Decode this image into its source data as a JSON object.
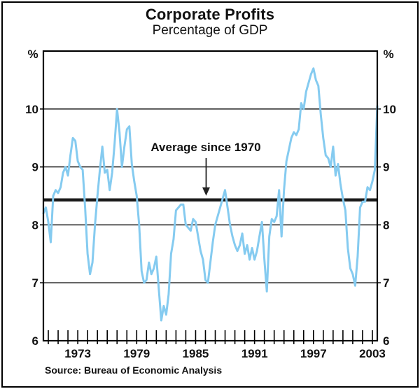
{
  "title": "Corporate Profits",
  "subtitle": "Percentage of GDP",
  "source_note": "Source: Bureau of Economic Analysis",
  "axis_unit": "%",
  "annotation": {
    "label": "Average since 1970"
  },
  "colors": {
    "series": "#85CBF0",
    "axis": "#000000",
    "average_line": "#1a1a1a",
    "background": "#ffffff"
  },
  "chart_data": {
    "type": "line",
    "title": "Corporate Profits",
    "subtitle": "Percentage of GDP",
    "ylabel": "%",
    "ylabel_right": "%",
    "ylim": [
      6,
      11
    ],
    "yticks": [
      6,
      7,
      8,
      9,
      10
    ],
    "grid": "horizontal lines at 7, 8, 9, 10",
    "legend_position": "none",
    "x_axis": {
      "start": 1969.5,
      "end": 2003.5,
      "minor_tick_first_year": 1970,
      "minor_tick_last_year": 2003,
      "labeled_years": [
        1973,
        1979,
        1985,
        1991,
        1997,
        2003
      ]
    },
    "average_line": {
      "label": "Average since 1970",
      "value": 8.43
    },
    "series": [
      {
        "name": "Corporate profits, percentage of GDP",
        "x_start": 1969.5,
        "x_step": 0.25,
        "values": [
          8.2,
          8.3,
          8.05,
          7.7,
          8.5,
          8.6,
          8.55,
          8.65,
          8.9,
          9.0,
          8.85,
          9.2,
          9.5,
          9.45,
          9.1,
          9.0,
          8.95,
          8.3,
          7.5,
          7.15,
          7.35,
          8.0,
          8.5,
          8.95,
          9.35,
          8.9,
          8.95,
          8.6,
          8.9,
          9.4,
          10.0,
          9.6,
          9.0,
          9.35,
          9.65,
          9.7,
          9.05,
          8.75,
          8.5,
          8.0,
          7.2,
          7.0,
          7.05,
          7.35,
          7.15,
          7.25,
          7.45,
          6.9,
          6.35,
          6.6,
          6.45,
          6.8,
          7.5,
          7.75,
          8.25,
          8.3,
          8.35,
          8.35,
          8.0,
          7.95,
          7.9,
          8.1,
          8.05,
          7.8,
          7.55,
          7.4,
          7.05,
          7.0,
          7.35,
          7.7,
          8.0,
          8.15,
          8.3,
          8.45,
          8.6,
          8.3,
          8.0,
          7.8,
          7.65,
          7.55,
          7.65,
          7.85,
          7.5,
          7.65,
          7.4,
          7.6,
          7.4,
          7.55,
          7.8,
          8.05,
          7.4,
          6.85,
          7.8,
          8.1,
          8.05,
          8.15,
          8.6,
          7.8,
          8.6,
          9.1,
          9.3,
          9.5,
          9.6,
          9.55,
          9.65,
          10.1,
          10.0,
          10.3,
          10.45,
          10.6,
          10.7,
          10.5,
          10.4,
          9.9,
          9.5,
          9.2,
          9.15,
          9.0,
          9.35,
          8.85,
          9.05,
          8.7,
          8.45,
          8.25,
          7.6,
          7.25,
          7.15,
          6.95,
          7.45,
          8.3,
          8.4,
          8.4,
          8.65,
          8.6,
          8.75,
          8.95,
          10.05
        ]
      }
    ]
  }
}
